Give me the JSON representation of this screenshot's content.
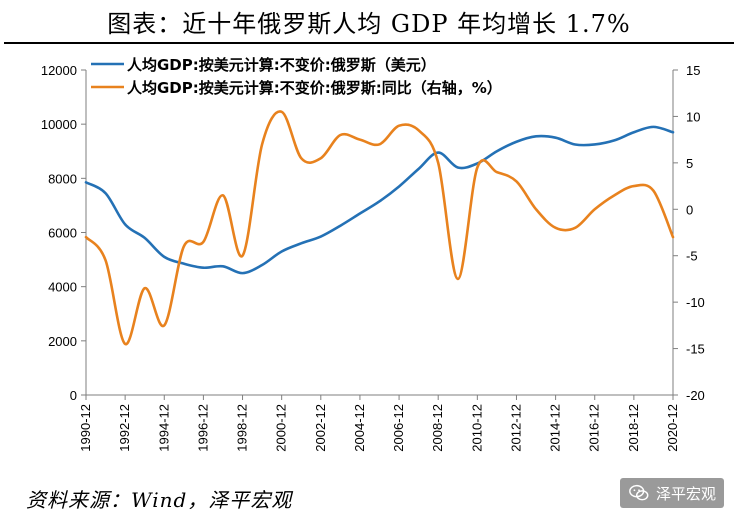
{
  "title": "图表：近十年俄罗斯人均 GDP 年均增长 1.7%",
  "source": "资料来源：Wind，泽平宏观",
  "watermark": "泽平宏观",
  "chart_data": {
    "type": "line",
    "x_labels": [
      "1990-12",
      "1992-12",
      "1994-12",
      "1996-12",
      "1998-12",
      "2000-12",
      "2002-12",
      "2004-12",
      "2006-12",
      "2008-12",
      "2010-12",
      "2012-12",
      "2014-12",
      "2016-12",
      "2018-12",
      "2020-12"
    ],
    "xlim": [
      1990,
      2020
    ],
    "y_left": {
      "lim": [
        0,
        12000
      ],
      "ticks": [
        0,
        2000,
        4000,
        6000,
        8000,
        10000,
        12000
      ]
    },
    "y_right": {
      "lim": [
        -20,
        15
      ],
      "ticks": [
        -20,
        -15,
        -10,
        -5,
        0,
        5,
        10,
        15
      ]
    },
    "grid": false,
    "legend_position": "top-left",
    "series": [
      {
        "name": "人均GDP:按美元计算:不变价:俄罗斯（美元）",
        "axis": "left",
        "color": "#2471b5",
        "x": [
          1990,
          1991,
          1992,
          1993,
          1994,
          1995,
          1996,
          1997,
          1998,
          1999,
          2000,
          2001,
          2002,
          2003,
          2004,
          2005,
          2006,
          2007,
          2008,
          2009,
          2010,
          2011,
          2012,
          2013,
          2014,
          2015,
          2016,
          2017,
          2018,
          2019,
          2020
        ],
        "values": [
          7850,
          7450,
          6300,
          5800,
          5100,
          4850,
          4700,
          4750,
          4500,
          4800,
          5300,
          5600,
          5850,
          6250,
          6700,
          7150,
          7700,
          8350,
          8950,
          8400,
          8550,
          9000,
          9350,
          9550,
          9500,
          9250,
          9250,
          9400,
          9700,
          9900,
          9700
        ]
      },
      {
        "name": "人均GDP:按美元计算:不变价:俄罗斯:同比（右轴，%）",
        "axis": "right",
        "color": "#e8821e",
        "x": [
          1990,
          1991,
          1992,
          1993,
          1994,
          1995,
          1996,
          1997,
          1998,
          1999,
          2000,
          2001,
          2002,
          2003,
          2004,
          2005,
          2006,
          2007,
          2008,
          2009,
          2010,
          2011,
          2012,
          2013,
          2014,
          2015,
          2016,
          2017,
          2018,
          2019,
          2020
        ],
        "values": [
          -3,
          -5.5,
          -14.5,
          -8.5,
          -12.5,
          -4,
          -3.5,
          1.5,
          -5,
          7,
          10.5,
          5.5,
          5.5,
          8,
          7.5,
          7,
          9,
          8.5,
          5,
          -7.5,
          4.5,
          4,
          3,
          0,
          -2,
          -2,
          0,
          1.5,
          2.5,
          2,
          -3
        ]
      }
    ]
  }
}
